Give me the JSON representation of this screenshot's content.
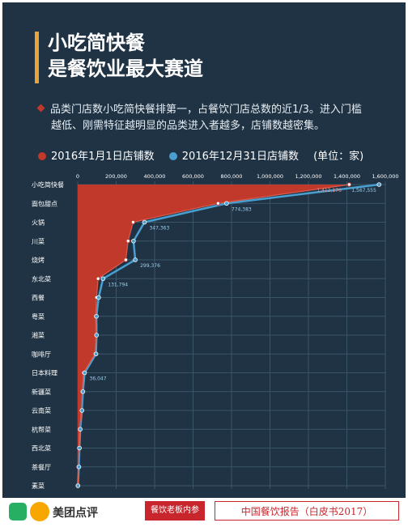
{
  "header": {
    "title_line1": "小吃简快餐",
    "title_line2": "是餐饮业最大赛道",
    "description_line1": "品类门店数小吃简快餐排第一，占餐饮门店总数的近1/3。进入门槛",
    "description_line2": "越低、刚需特征越明显的品类进入者越多，店铺数越密集。"
  },
  "legend": {
    "series1": "2016年1月1日店铺数",
    "series2": "2016年12月31日店铺数",
    "unit": "(单位：家)"
  },
  "colors": {
    "background": "#1f3344",
    "series1": "#c0392b",
    "series2": "#4a9fd0",
    "accent": "#e8a43a"
  },
  "chart_data": {
    "type": "line",
    "xlim": [
      0,
      1600000
    ],
    "x_ticks": [
      "0",
      "200,000",
      "400,000",
      "600,000",
      "800,000",
      "1,000,000",
      "1,200,000",
      "1,400,000",
      "1,600,000"
    ],
    "categories": [
      "小吃简快餐",
      "面包甜点",
      "火锅",
      "川菜",
      "烧烤",
      "东北菜",
      "西餐",
      "粤菜",
      "湘菜",
      "咖啡厅",
      "日本料理",
      "新疆菜",
      "云南菜",
      "杭帮菜",
      "西北菜",
      "茶餐厅",
      "素菜"
    ],
    "series": [
      {
        "name": "2016年1月1日店铺数",
        "values": [
          1412176,
          730000,
          288000,
          262000,
          250000,
          106000,
          98000,
          93000,
          95000,
          90000,
          30000,
          23000,
          22000,
          12000,
          8000,
          5000,
          1000
        ],
        "value_labels": [
          "1,412,176",
          "",
          "",
          "",
          "",
          "",
          "",
          "",
          "",
          "",
          "",
          "",
          "",
          "",
          "",
          "",
          ""
        ]
      },
      {
        "name": "2016年12月31日店铺数",
        "values": [
          1567555,
          774383,
          347363,
          290000,
          299376,
          131794,
          109000,
          97000,
          98000,
          95000,
          36047,
          27000,
          22000,
          13000,
          9011,
          6000,
          1070
        ],
        "value_labels": [
          "1,567,555",
          "774,383",
          "347,363",
          "",
          "299,376",
          "131,794",
          "",
          "",
          "",
          "",
          "36,047",
          "",
          "",
          "",
          "",
          "",
          ""
        ]
      }
    ]
  },
  "footer": {
    "brand": "美团点评",
    "badge": "餐饮老板内参",
    "report": "中国餐饮报告（白皮书2017）"
  }
}
